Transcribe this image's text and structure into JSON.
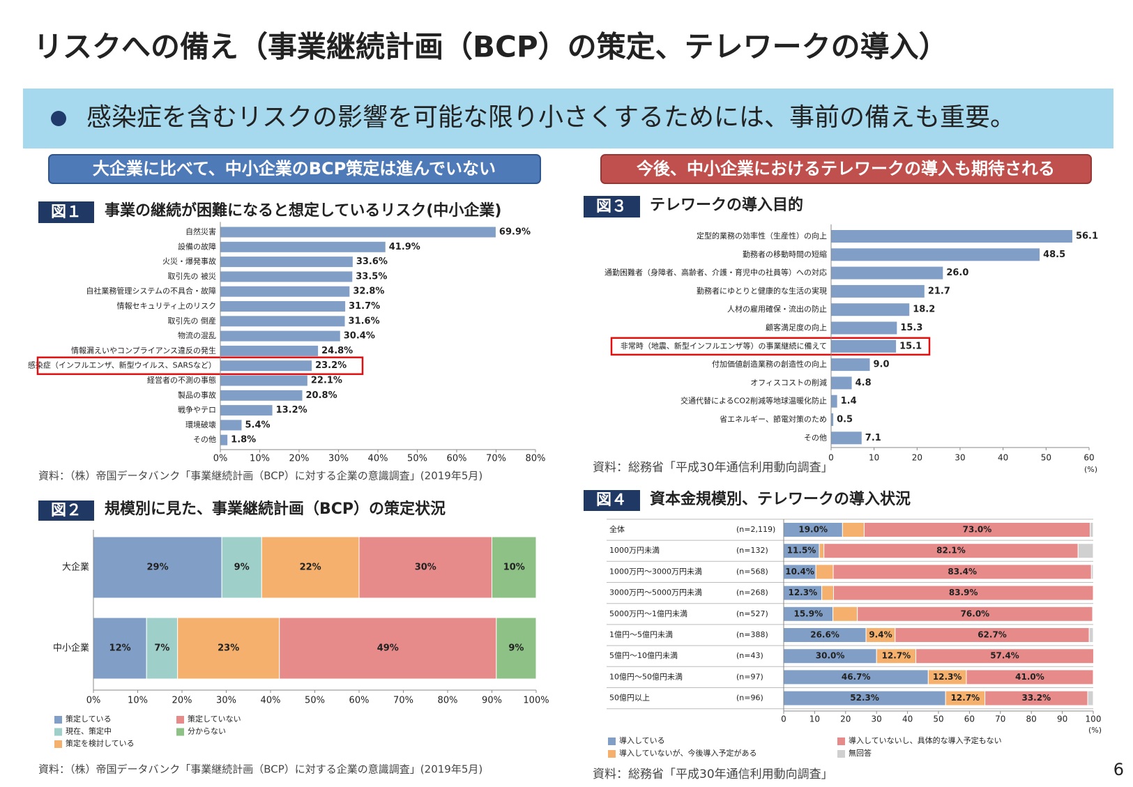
{
  "title": "リスクへの備え（事業継続計画（BCP）の策定、テレワークの導入）",
  "bullet": "感染症を含むリスクの影響を可能な限り小さくするためには、事前の備えも重要。",
  "banners": [
    "大企業に比べて、中小企業のBCP策定は進んでいない",
    "今後、中小企業におけるテレワークの導入も期待される"
  ],
  "page_number": "6",
  "chart_data": [
    {
      "type": "bar",
      "figure_label": "図１",
      "title": "事業の継続が困難になると想定しているリスク(中小企業)",
      "categories": [
        "自然災害",
        "設備の故障",
        "火災・爆発事故",
        "取引先の 被災",
        "自社業務管理システムの不具合・故障",
        "情報セキュリティ上のリスク",
        "取引先の 倒産",
        "物流の混乱",
        "情報漏えいやコンプライアンス違反の発生",
        "感染症（インフルエンザ、新型ウイルス、SARSなど）",
        "経営者の不測の事態",
        "製品の事故",
        "戦争やテロ",
        "環境破壊",
        "その他"
      ],
      "values": [
        69.9,
        41.9,
        33.6,
        33.5,
        32.8,
        31.7,
        31.6,
        30.4,
        24.8,
        23.2,
        22.1,
        20.8,
        13.2,
        5.4,
        1.8
      ],
      "value_labels": [
        "69.9%",
        "41.9%",
        "33.6%",
        "33.5%",
        "32.8%",
        "31.7%",
        "31.6%",
        "30.4%",
        "24.8%",
        "23.2%",
        "22.1%",
        "20.8%",
        "13.2%",
        "5.4%",
        "1.8%"
      ],
      "color": "#819fc6",
      "highlight": 9,
      "xlim": [
        0,
        80
      ],
      "xticks": [
        {
          "value": 0,
          "label": "0%"
        },
        {
          "value": 10,
          "label": "10%"
        },
        {
          "value": 20,
          "label": "20%"
        },
        {
          "value": 30,
          "label": "30%"
        },
        {
          "value": 40,
          "label": "40%"
        },
        {
          "value": 50,
          "label": "50%"
        },
        {
          "value": 60,
          "label": "60%"
        },
        {
          "value": 70,
          "label": "70%"
        },
        {
          "value": 80,
          "label": "80%"
        }
      ],
      "source": "資料：（株）帝国データバンク「事業継続計画（BCP）に対する企業の意識調査」(2019年5月)"
    },
    {
      "type": "stacked_bar",
      "figure_label": "図２",
      "title": "規模別に見た、事業継続計画（BCP）の策定状況",
      "categories": [
        "大企業",
        "中小企業"
      ],
      "series": [
        {
          "name": "策定している",
          "color": "#819fc6",
          "values": [
            29,
            12
          ],
          "value_labels": [
            "29%",
            "12%"
          ]
        },
        {
          "name": "現在、策定中",
          "color": "#9fcfc9",
          "values": [
            9,
            7
          ],
          "value_labels": [
            "9%",
            "7%"
          ]
        },
        {
          "name": "策定を検討している",
          "color": "#f4b06c",
          "values": [
            22,
            23
          ],
          "value_labels": [
            "22%",
            "23%"
          ]
        },
        {
          "name": "策定していない",
          "color": "#e78a8a",
          "values": [
            30,
            49
          ],
          "value_labels": [
            "30%",
            "49%"
          ]
        },
        {
          "name": "分からない",
          "color": "#8dc186",
          "values": [
            10,
            9
          ],
          "value_labels": [
            "10%",
            "9%"
          ]
        }
      ],
      "xlim": [
        0,
        100
      ],
      "xticks": [
        {
          "value": 0,
          "label": "0%"
        },
        {
          "value": 10,
          "label": "10%"
        },
        {
          "value": 20,
          "label": "20%"
        },
        {
          "value": 30,
          "label": "30%"
        },
        {
          "value": 40,
          "label": "40%"
        },
        {
          "value": 50,
          "label": "50%"
        },
        {
          "value": 60,
          "label": "60%"
        },
        {
          "value": 70,
          "label": "70%"
        },
        {
          "value": 80,
          "label": "80%"
        },
        {
          "value": 90,
          "label": "90%"
        },
        {
          "value": 100,
          "label": "100%"
        }
      ],
      "source": "資料：（株）帝国データバンク「事業継続計画（BCP）に対する企業の意識調査」(2019年5月)"
    },
    {
      "type": "bar",
      "figure_label": "図３",
      "title": "テレワークの導入目的",
      "categories": [
        "定型的業務の効率性（生産性）の向上",
        "勤務者の移動時間の短縮",
        "通勤困難者（身障者、高齢者、介護・育児中の社員等）への対応",
        "勤務者にゆとりと健康的な生活の実現",
        "人材の雇用確保・流出の防止",
        "顧客満足度の向上",
        "非常時（地震、新型インフルエンザ等）の事業継続に備えて",
        "付加価値創造業務の創造性の向上",
        "オフィスコストの削減",
        "交通代替によるCO2削減等地球温暖化防止",
        "省エネルギー、節電対策のため",
        "その他"
      ],
      "values": [
        56.1,
        48.5,
        26.0,
        21.7,
        18.2,
        15.3,
        15.1,
        9.0,
        4.8,
        1.4,
        0.5,
        7.1
      ],
      "value_labels": [
        "56.1",
        "48.5",
        "26.0",
        "21.7",
        "18.2",
        "15.3",
        "15.1",
        "9.0",
        "4.8",
        "1.4",
        "0.5",
        "7.1"
      ],
      "color": "#819fc6",
      "highlight": 6,
      "xlim": [
        0,
        60
      ],
      "xticks": [
        0,
        10,
        20,
        30,
        40,
        50,
        60
      ],
      "x_unit": "(%)",
      "source": "資料：総務省「平成30年通信利用動向調査」"
    },
    {
      "type": "stacked_bar",
      "figure_label": "図４",
      "title": "資本金規模別、テレワークの導入状況",
      "categories": [
        "全体",
        "1000万円未満",
        "1000万円～3000万円未満",
        "3000万円～5000万円未満",
        "5000万円～1億円未満",
        "1億円～5億円未満",
        "5億円～10億円未満",
        "10億円～50億円未満",
        "50億円以上"
      ],
      "n_labels": [
        "(n=2,119)",
        "(n=132)",
        "(n=568)",
        "(n=268)",
        "(n=527)",
        "(n=388)",
        "(n=43)",
        "(n=97)",
        "(n=96)"
      ],
      "series": [
        {
          "name": "導入している",
          "color": "#819fc6",
          "values": [
            19.0,
            11.5,
            10.4,
            12.3,
            15.9,
            26.6,
            30.0,
            46.7,
            52.3
          ],
          "value_labels": [
            "19.0%",
            "11.5%",
            "10.4%",
            "12.3%",
            "15.9%",
            "26.6%",
            "30.0%",
            "46.7%",
            "52.3%"
          ]
        },
        {
          "name": "導入していないが、今後導入予定がある",
          "color": "#f4b06c",
          "values": [
            7.0,
            1.5,
            5.6,
            3.8,
            7.9,
            9.4,
            12.7,
            12.3,
            12.7
          ],
          "value_labels": [
            null,
            null,
            null,
            null,
            null,
            "9.4%",
            "12.7%",
            "12.3%",
            "12.7%"
          ]
        },
        {
          "name": "導入していないし、具体的な導入予定もない",
          "color": "#e78a8a",
          "values": [
            73.0,
            82.1,
            83.4,
            83.9,
            76.0,
            62.7,
            57.4,
            41.0,
            33.2
          ],
          "value_labels": [
            "73.0%",
            "82.1%",
            "83.4%",
            "83.9%",
            "76.0%",
            "62.7%",
            "57.4%",
            "41.0%",
            "33.2%"
          ]
        },
        {
          "name": "無回答",
          "color": "#d0d0d0",
          "values": [
            1.0,
            4.9,
            0.6,
            0,
            0.2,
            1.3,
            0,
            0,
            1.8
          ],
          "value_labels": [
            null,
            null,
            null,
            null,
            null,
            null,
            null,
            null,
            null
          ]
        }
      ],
      "xlim": [
        0,
        100
      ],
      "xticks": [
        0,
        10,
        20,
        30,
        40,
        50,
        60,
        70,
        80,
        90,
        100
      ],
      "x_unit": "(%)",
      "source": "資料：総務省「平成30年通信利用動向調査」"
    }
  ]
}
